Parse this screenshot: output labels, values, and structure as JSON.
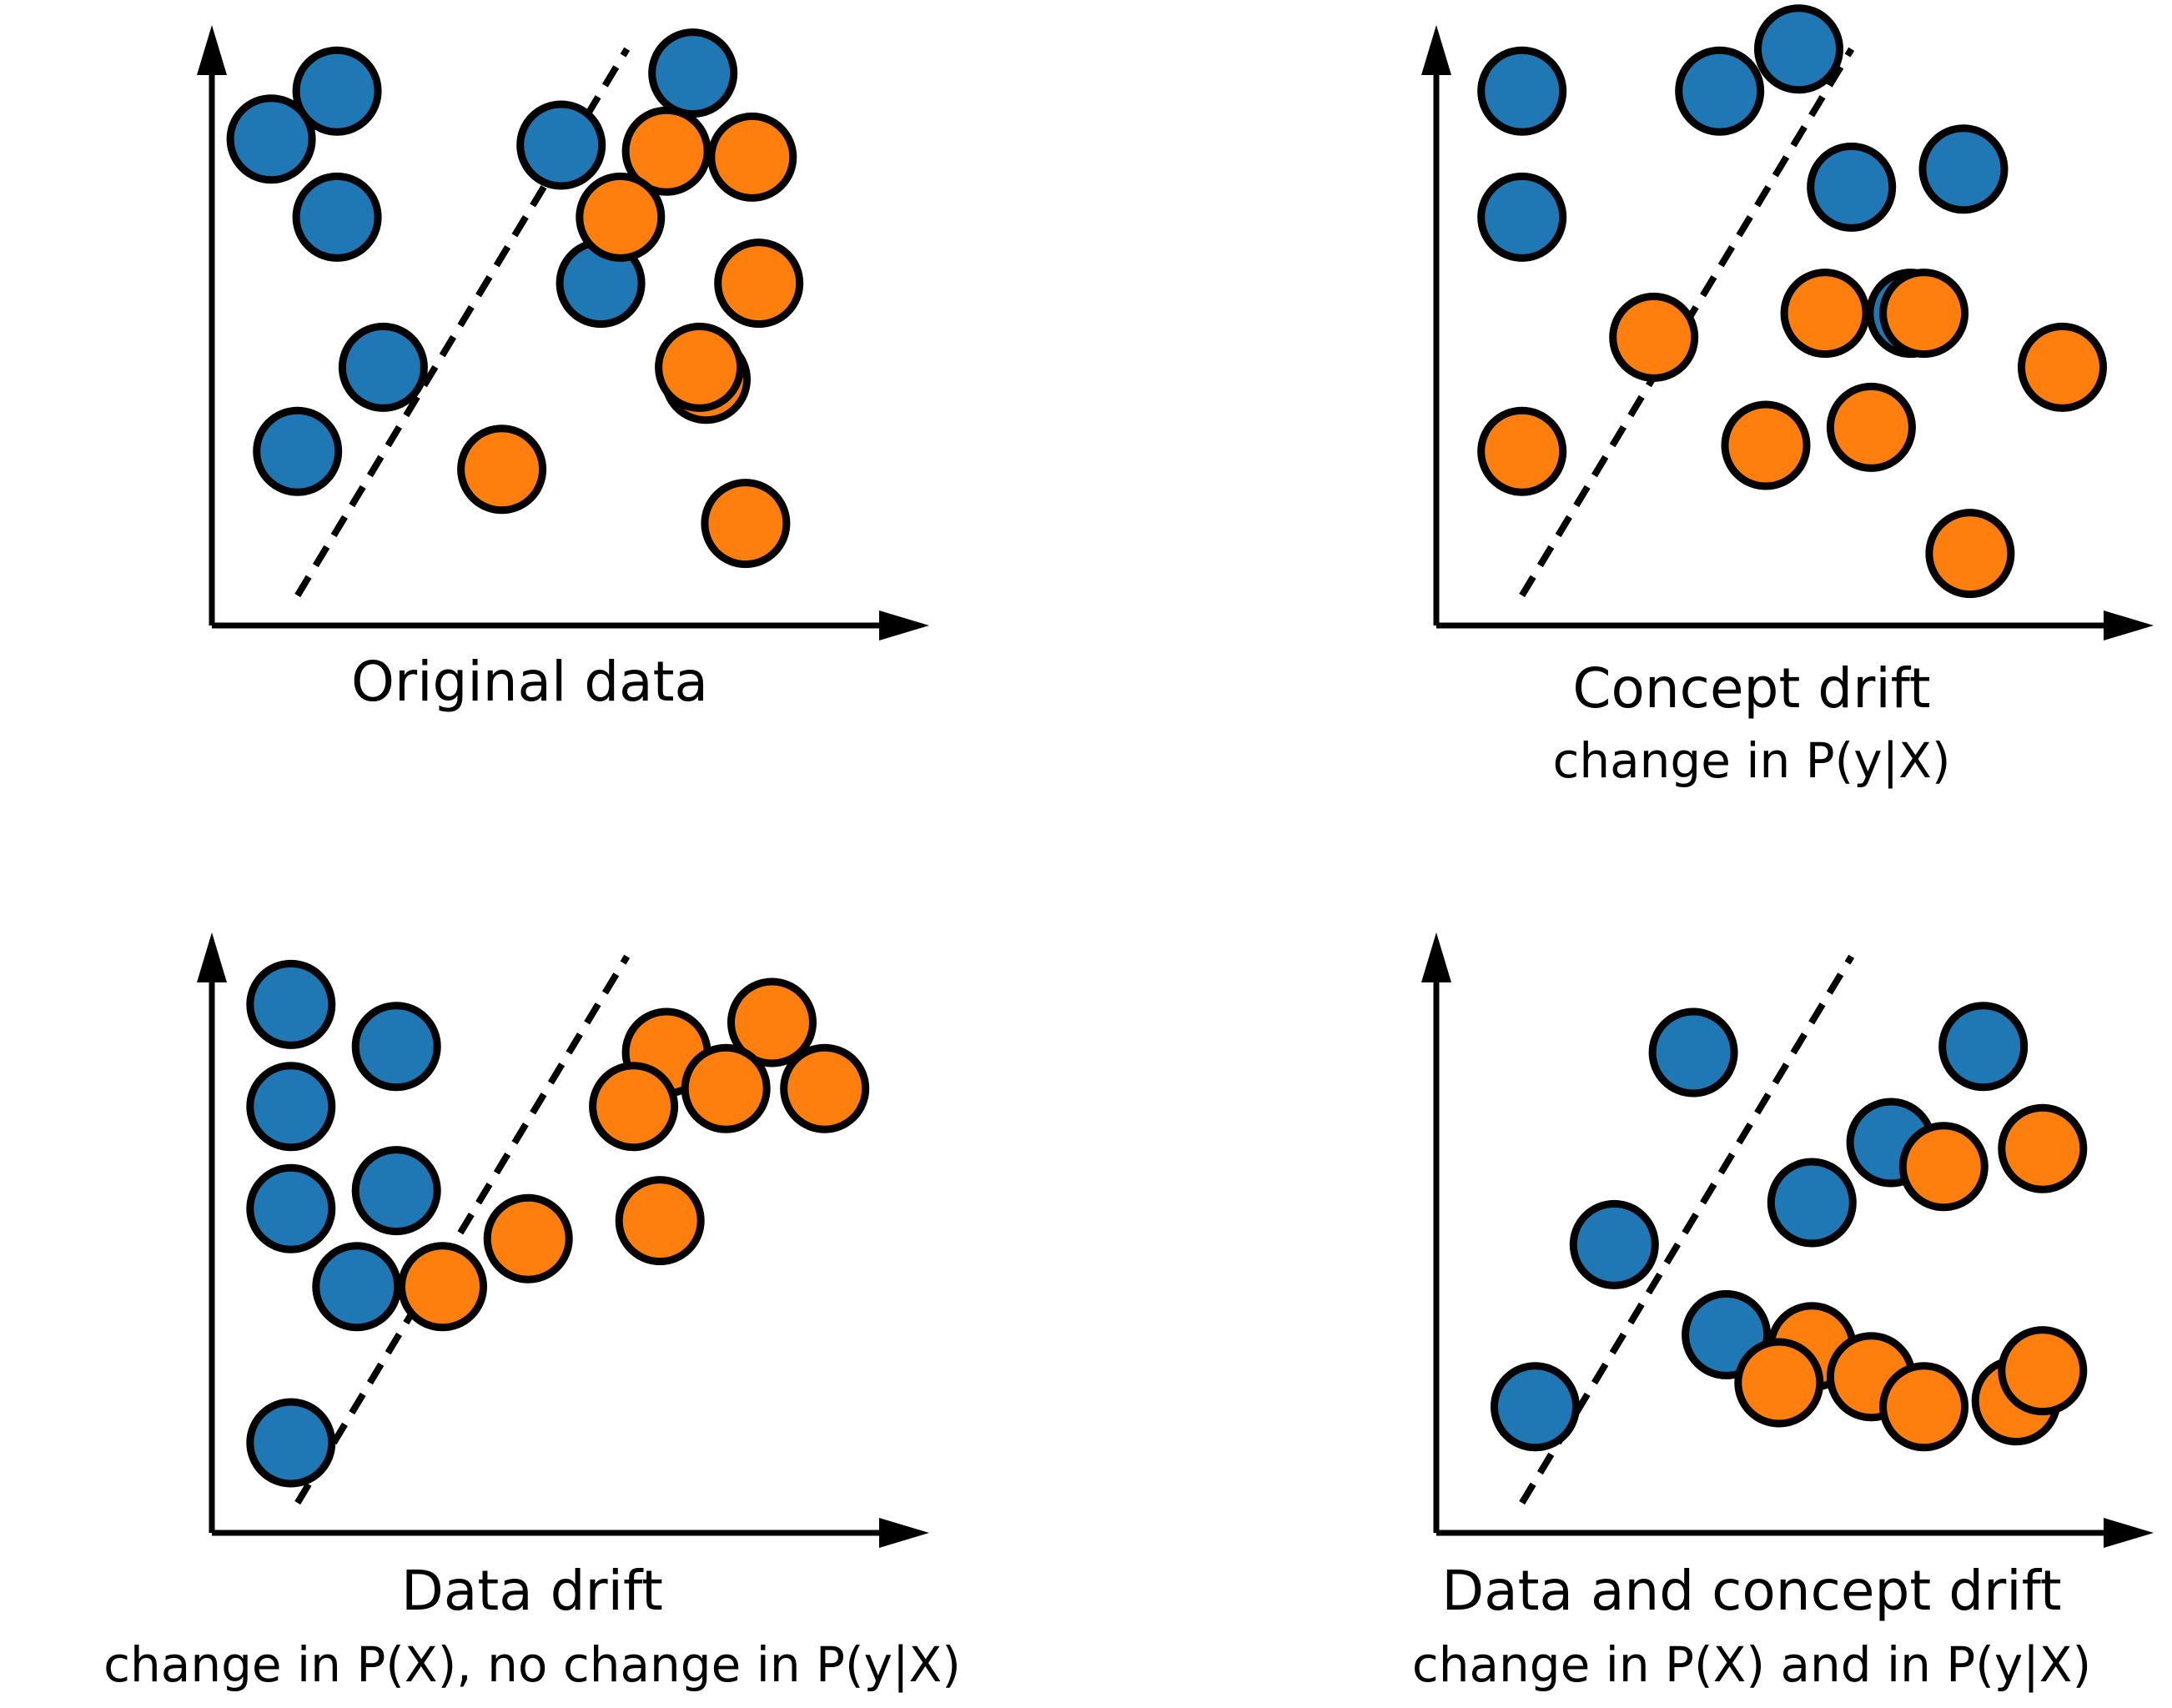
{
  "colors": {
    "class_a": "#1f77b4",
    "class_b": "#ff7f0e",
    "outline": "#000000",
    "axes": "#000000",
    "boundary": "#000000"
  },
  "panels": [
    {
      "title": "Original data",
      "subtitle": "",
      "blue_points": [
        [
          0.19,
          0.89
        ],
        [
          0.53,
          0.8
        ],
        [
          0.73,
          0.92
        ],
        [
          0.19,
          0.68
        ],
        [
          0.59,
          0.57
        ],
        [
          0.26,
          0.43
        ],
        [
          0.09,
          0.81
        ],
        [
          0.13,
          0.29
        ]
      ],
      "orange_points": [
        [
          0.44,
          0.26
        ],
        [
          0.69,
          0.79
        ],
        [
          0.82,
          0.78
        ],
        [
          0.62,
          0.68
        ],
        [
          0.83,
          0.57
        ],
        [
          0.75,
          0.41
        ],
        [
          0.81,
          0.17
        ],
        [
          0.74,
          0.43
        ]
      ],
      "boundary_style": "dashed"
    },
    {
      "title": "Concept drift",
      "subtitle": "change in P(y|X)",
      "blue_points": [
        [
          0.13,
          0.89
        ],
        [
          0.43,
          0.89
        ],
        [
          0.55,
          0.96
        ],
        [
          0.13,
          0.68
        ],
        [
          0.63,
          0.73
        ],
        [
          0.8,
          0.76
        ],
        [
          0.72,
          0.52
        ]
      ],
      "orange_points": [
        [
          0.59,
          0.52
        ],
        [
          0.74,
          0.52
        ],
        [
          0.33,
          0.48
        ],
        [
          0.95,
          0.43
        ],
        [
          0.5,
          0.3
        ],
        [
          0.66,
          0.33
        ],
        [
          0.81,
          0.12
        ],
        [
          0.13,
          0.29
        ]
      ],
      "boundary_style": "dashed"
    },
    {
      "title": "Data drift",
      "subtitle": "change in P(X), no change in P(y|X)",
      "blue_points": [
        [
          0.12,
          0.88
        ],
        [
          0.28,
          0.81
        ],
        [
          0.12,
          0.71
        ],
        [
          0.28,
          0.57
        ],
        [
          0.12,
          0.54
        ],
        [
          0.22,
          0.41
        ],
        [
          0.12,
          0.15
        ]
      ],
      "orange_points": [
        [
          0.69,
          0.8
        ],
        [
          0.85,
          0.85
        ],
        [
          0.64,
          0.71
        ],
        [
          0.78,
          0.74
        ],
        [
          0.93,
          0.74
        ],
        [
          0.48,
          0.49
        ],
        [
          0.68,
          0.52
        ],
        [
          0.35,
          0.41
        ]
      ],
      "boundary_style": "dashed"
    },
    {
      "title": "Data and concept drift",
      "subtitle": "change in P(X) and in P(y|X)",
      "blue_points": [
        [
          0.39,
          0.8
        ],
        [
          0.83,
          0.81
        ],
        [
          0.69,
          0.65
        ],
        [
          0.57,
          0.55
        ],
        [
          0.27,
          0.48
        ],
        [
          0.44,
          0.33
        ],
        [
          0.15,
          0.21
        ]
      ],
      "orange_points": [
        [
          0.77,
          0.61
        ],
        [
          0.92,
          0.64
        ],
        [
          0.57,
          0.31
        ],
        [
          0.66,
          0.26
        ],
        [
          0.52,
          0.25
        ],
        [
          0.74,
          0.21
        ],
        [
          0.88,
          0.22
        ],
        [
          0.92,
          0.27
        ]
      ],
      "boundary_style": "dashed"
    }
  ]
}
